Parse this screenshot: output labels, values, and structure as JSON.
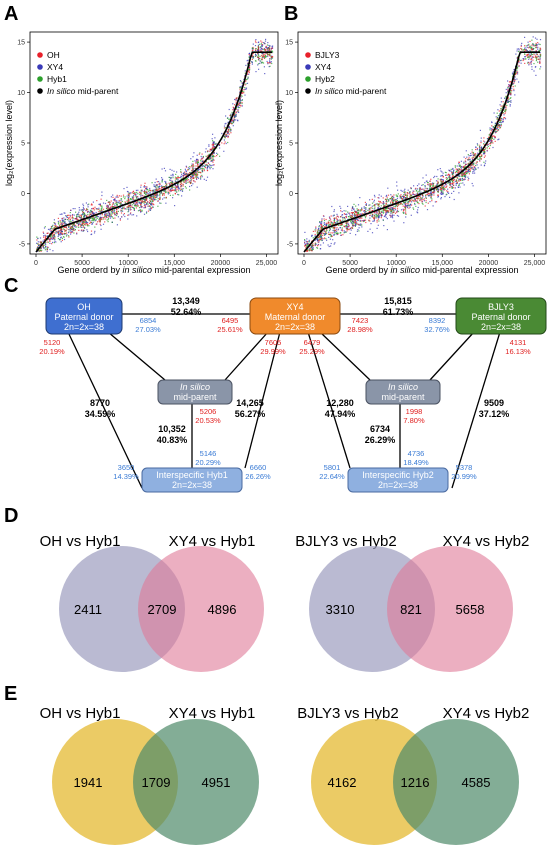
{
  "panels": {
    "A": {
      "letter": "A",
      "ylabel": "log₂(expression level)",
      "xlabel_pre": "Gene orderd by ",
      "xlabel_it": "in silico",
      "xlabel_post": " mid-parental expression",
      "legend": [
        {
          "label": "OH",
          "color": "#e8202a"
        },
        {
          "label": "XY4",
          "color": "#3a3ab8"
        },
        {
          "label": "Hyb1",
          "color": "#2ca02c"
        }
      ],
      "legend_mid": {
        "it": "In silico",
        "rest": " mid-parent",
        "color": "#000000"
      },
      "xticks": [
        "0",
        "5000",
        "10000",
        "15,000",
        "20000",
        "25,000"
      ],
      "yticks": [
        "-5",
        "0",
        "5",
        "10",
        "15"
      ]
    },
    "B": {
      "letter": "B",
      "ylabel": "log₂(expression level)",
      "xlabel_pre": "Gene orderd by ",
      "xlabel_it": "in silico",
      "xlabel_post": " mid-parental expression",
      "legend": [
        {
          "label": "BJLY3",
          "color": "#e8202a"
        },
        {
          "label": "XY4",
          "color": "#3a3ab8"
        },
        {
          "label": "Hyb2",
          "color": "#2ca02c"
        }
      ],
      "legend_mid": {
        "it": "In silico",
        "rest": " mid-parent",
        "color": "#000000"
      },
      "xticks": [
        "0",
        "5000",
        "10000",
        "15,000",
        "20000",
        "25,000"
      ],
      "yticks": [
        "-5",
        "0",
        "5",
        "10",
        "15"
      ]
    },
    "C": {
      "letter": "C",
      "nodes": {
        "oh": {
          "line1": "OH",
          "line2": "Paternal donor",
          "line3": "2n=2x=38",
          "color": "#3f6fd0"
        },
        "xy4": {
          "line1": "XY4",
          "line2": "Maternal donor",
          "line3": "2n=2x=38",
          "color": "#f08a2c"
        },
        "bjly3": {
          "line1": "BJLY3",
          "line2": "Paternal donor",
          "line3": "2n=2x=38",
          "color": "#4a8a34"
        },
        "mid1": {
          "it": "In silico",
          "line2": "mid-parent",
          "color": "#8a95a8"
        },
        "mid2": {
          "it": "In silico",
          "line2": "mid-parent",
          "color": "#8a95a8"
        },
        "hyb1": {
          "line1": "Interspecific Hyb1",
          "line2": "2n=2x=38",
          "color": "#8fb0e0"
        },
        "hyb2": {
          "line1": "Interspecific Hyb2",
          "line2": "2n=2x=38",
          "color": "#8fb0e0"
        }
      },
      "labels": {
        "top1_n": "13,349",
        "top1_p": "52.64%",
        "top2_n": "15,815",
        "top2_p": "61.73%",
        "b_6854": "6854",
        "b_6854p": "27.03%",
        "r_6495": "6495",
        "r_6495p": "25.61%",
        "r_7423": "7423",
        "r_7423p": "28.98%",
        "b_8392": "8392",
        "b_8392p": "32.76%",
        "r_5120": "5120",
        "r_5120p": "20.19%",
        "r_7605": "7605",
        "r_7605p": "29.99%",
        "b_6479": "6479",
        "b_6479p": "25.29%",
        "r_4131": "4131",
        "r_4131p": "16.13%",
        "k_8770": "8770",
        "k_8770p": "34.59%",
        "k_14265": "14,265",
        "k_14265p": "56.27%",
        "k_12280": "12,280",
        "k_12280p": "47.94%",
        "k_9509": "9509",
        "k_9509p": "37.12%",
        "r_5206": "5206",
        "r_5206p": "20.53%",
        "r_1998": "1998",
        "r_1998p": "7.80%",
        "k_10352": "10,352",
        "k_10352p": "40.83%",
        "k_6734": "6734",
        "k_6734p": "26.29%",
        "b_5146": "5146",
        "b_5146p": "20.29%",
        "b_4736": "4736",
        "b_4736p": "18.49%",
        "b_3650": "3650",
        "b_3650p": "14.39%",
        "b_6660": "6660",
        "b_6660p": "26.26%",
        "b_5801": "5801",
        "b_5801p": "22.64%",
        "b_5378": "5378",
        "b_5378p": "20.99%"
      }
    },
    "D": {
      "letter": "D",
      "venns": [
        {
          "left_title": "OH vs Hyb1",
          "right_title": "XY4 vs Hyb1",
          "left": "2411",
          "both": "2709",
          "right": "4896",
          "left_color": "#9fa0c0",
          "right_color": "#e07a98"
        },
        {
          "left_title": "BJLY3 vs Hyb2",
          "right_title": "XY4 vs Hyb2",
          "left": "3310",
          "both": "821",
          "right": "5658",
          "left_color": "#9fa0c0",
          "right_color": "#e07a98"
        }
      ]
    },
    "E": {
      "letter": "E",
      "venns": [
        {
          "left_title": "OH vs Hyb1",
          "right_title": "XY4 vs Hyb1",
          "left": "1941",
          "both": "1709",
          "right": "4951",
          "left_color": "#e8c24a",
          "right_color": "#4f8a6a"
        },
        {
          "left_title": "BJLY3 vs Hyb2",
          "right_title": "XY4 vs Hyb2",
          "left": "4162",
          "both": "1216",
          "right": "4585",
          "left_color": "#e8c24a",
          "right_color": "#4f8a6a"
        }
      ]
    }
  }
}
